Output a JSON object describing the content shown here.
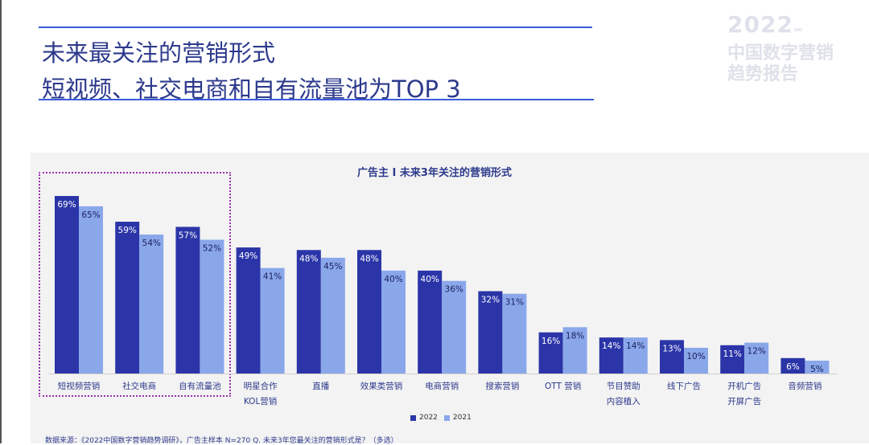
{
  "header": {
    "title_line1": "未来最关注的营销形式",
    "title_line2": "短视频、社交电商和自有流量池为TOP 3"
  },
  "logo": {
    "year": "2022",
    "arrows": "»»",
    "line1": "中国数字营销",
    "line2": "趋势报告"
  },
  "footnote": "数据来源：《2022中国数字营销趋势调研》，广告主样本 N=270    Q. 未来3年您最关注的营销形式是？（多选）",
  "colors": {
    "series_2022": "#2b35a8",
    "series_2021": "#8aa7ea",
    "highlight": "#9b2fae",
    "title": "#2d3a8c"
  },
  "chart_data": {
    "type": "bar",
    "title": "广告主 I 未来3年关注的营销形式",
    "categories": [
      [
        "短视频营销"
      ],
      [
        "社交电商"
      ],
      [
        "自有流量池"
      ],
      [
        "明星合作",
        "KOL营销"
      ],
      [
        "直播"
      ],
      [
        "效果类营销"
      ],
      [
        "电商营销"
      ],
      [
        "搜索营销"
      ],
      [
        "OTT 营销"
      ],
      [
        "节目赞助",
        "内容植入"
      ],
      [
        "线下广告"
      ],
      [
        "开机广告",
        "开屏广告"
      ],
      [
        "音频营销"
      ]
    ],
    "series": [
      {
        "name": "2022",
        "values": [
          69,
          59,
          57,
          49,
          48,
          48,
          40,
          32,
          16,
          14,
          13,
          11,
          6
        ],
        "labels": [
          "69%",
          "59%",
          "57%",
          "49%",
          "48%",
          "48%",
          "40%",
          "32%",
          "16%",
          "14%",
          "13%",
          "11%",
          "6%"
        ]
      },
      {
        "name": "2021",
        "values": [
          65,
          54,
          52,
          41,
          45,
          40,
          36,
          31,
          18,
          14,
          10,
          12,
          5
        ],
        "labels": [
          "65%",
          "54%",
          "52%",
          "41%",
          "45%",
          "40%",
          "36%",
          "31%",
          "18%",
          "14%",
          "10%",
          "12%",
          "5%"
        ]
      }
    ],
    "ylim": [
      0,
      69
    ],
    "xlabel": "",
    "ylabel": "",
    "legend_position": "bottom-center",
    "highlighted_categories": [
      "短视频营销",
      "社交电商",
      "自有流量池"
    ]
  }
}
